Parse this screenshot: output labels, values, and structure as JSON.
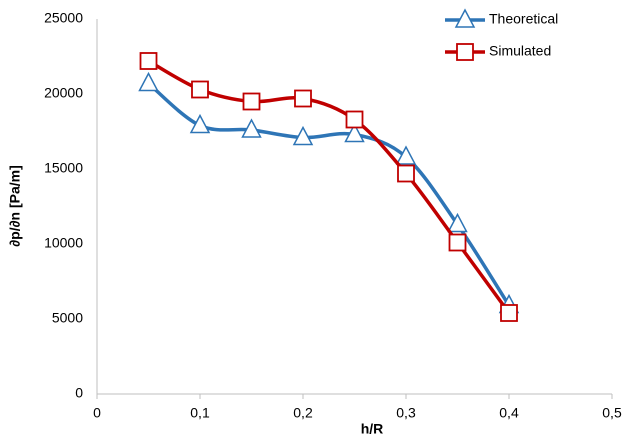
{
  "chart_data": {
    "type": "line",
    "xlabel": "h/R",
    "ylabel": "∂p/∂n [Pa/m]",
    "x": [
      0.05,
      0.1,
      0.15,
      0.2,
      0.25,
      0.3,
      0.35,
      0.4
    ],
    "series": [
      {
        "name": "Theoretical",
        "color": "#2e75b6",
        "marker": "triangle",
        "values": [
          20700,
          17900,
          17600,
          17100,
          17300,
          15800,
          11300,
          5900
        ]
      },
      {
        "name": "Simulated",
        "color": "#c00000",
        "marker": "square",
        "values": [
          22200,
          20300,
          19500,
          19700,
          18300,
          14700,
          10100,
          5400
        ]
      }
    ],
    "xlim": [
      0,
      0.5
    ],
    "ylim": [
      0,
      25000
    ],
    "xticks": [
      0,
      {
        "value": 0.1,
        "label": "0,1"
      },
      {
        "value": 0.2,
        "label": "0,2"
      },
      {
        "value": 0.3,
        "label": "0,3"
      },
      {
        "value": 0.4,
        "label": "0,4"
      },
      {
        "value": 0.5,
        "label": "0,5"
      }
    ],
    "yticks": [
      0,
      5000,
      10000,
      15000,
      20000,
      25000
    ],
    "grid": false,
    "smooth": true,
    "legend": "top-right"
  }
}
